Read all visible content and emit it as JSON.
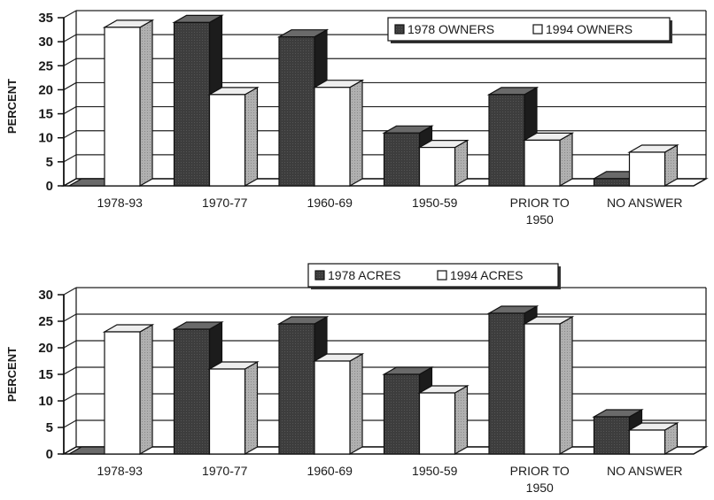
{
  "chart_data": [
    {
      "type": "bar",
      "ylabel": "PERCENT",
      "ylim": [
        0,
        35
      ],
      "yticks": [
        0,
        5,
        10,
        15,
        20,
        25,
        30,
        35
      ],
      "categories": [
        "1978-93",
        "1970-77",
        "1960-69",
        "1950-59",
        "PRIOR TO 1950",
        "NO ANSWER"
      ],
      "category_lines": [
        [
          "1978-93"
        ],
        [
          "1970-77"
        ],
        [
          "1960-69"
        ],
        [
          "1950-59"
        ],
        [
          "PRIOR TO",
          "1950"
        ],
        [
          "NO ANSWER"
        ]
      ],
      "legend_position": "top-right",
      "grid": true,
      "style": "3d",
      "series": [
        {
          "name": "1978 OWNERS",
          "values": [
            0,
            34,
            31,
            11,
            19,
            1.5
          ]
        },
        {
          "name": "1994 OWNERS",
          "values": [
            33,
            19,
            20.5,
            8,
            9.5,
            7
          ]
        }
      ]
    },
    {
      "type": "bar",
      "ylabel": "PERCENT",
      "ylim": [
        0,
        30
      ],
      "yticks": [
        0,
        5,
        10,
        15,
        20,
        25,
        30
      ],
      "categories": [
        "1978-93",
        "1970-77",
        "1960-69",
        "1950-59",
        "PRIOR TO 1950",
        "NO ANSWER"
      ],
      "category_lines": [
        [
          "1978-93"
        ],
        [
          "1970-77"
        ],
        [
          "1960-69"
        ],
        [
          "1950-59"
        ],
        [
          "PRIOR TO",
          "1950"
        ],
        [
          "NO ANSWER"
        ]
      ],
      "legend_position": "top-center",
      "grid": true,
      "style": "3d",
      "series": [
        {
          "name": "1978 ACRES",
          "values": [
            0,
            23.5,
            24.5,
            15,
            26.5,
            7
          ]
        },
        {
          "name": "1994 ACRES",
          "values": [
            23,
            16,
            17.5,
            11.5,
            24.5,
            4.5
          ]
        }
      ]
    }
  ],
  "colors": {
    "dark_front": "#3d3d3d",
    "dark_top": "#6a6a6a",
    "dark_side": "#1c1c1c",
    "light_front": "#ffffff",
    "light_top": "#eeeeee",
    "light_side": "#b0b0b0",
    "gridline": "#222222",
    "axis": "#111111"
  }
}
